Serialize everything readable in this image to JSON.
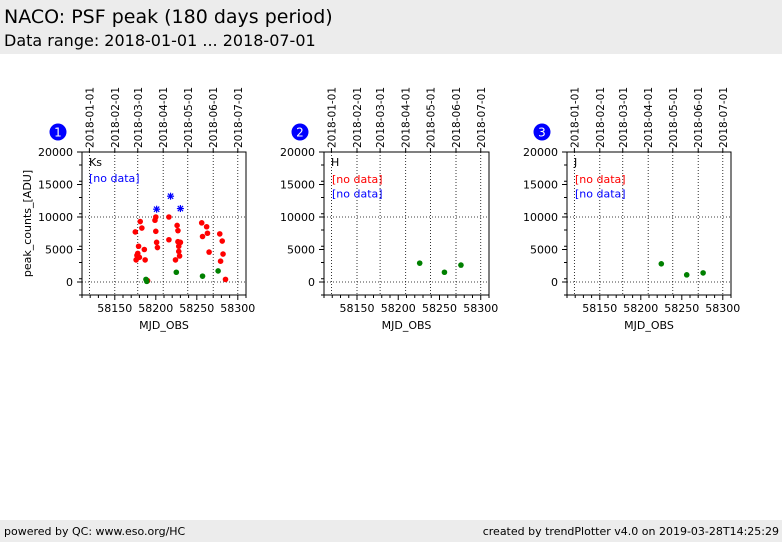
{
  "header": {
    "title": "NACO: PSF peak (180 days period)",
    "subtitle": "Data range: 2018-01-01 ... 2018-07-01"
  },
  "footer": {
    "left": "powered by QC: www.eso.org/HC",
    "right": "created by trendPlotter v4.0 on 2019-03-28T14:25:29"
  },
  "colors": {
    "red": "#ff0000",
    "green": "#008000",
    "blue": "#0000ff",
    "badge": "#0000ff",
    "header_bg": "#ececec"
  },
  "chart_data": [
    {
      "type": "scatter",
      "panel": "1",
      "filter": "Ks",
      "no_data_label": "[no data]",
      "no_data_color": "blue",
      "xlabel": "MJD_OBS",
      "ylabel": "peak_counts_[ADU]",
      "xlim": [
        58110,
        58310
      ],
      "ylim": [
        -2000,
        20000
      ],
      "xticks": [
        58150,
        58200,
        58250,
        58300
      ],
      "yticks": [
        0,
        5000,
        10000,
        15000,
        20000
      ],
      "reference_lines_y": [
        0,
        10000
      ],
      "date_ticks": [
        {
          "label": "2018-01-01",
          "mjd": 58119
        },
        {
          "label": "2018-02-01",
          "mjd": 58150
        },
        {
          "label": "2018-03-01",
          "mjd": 58178
        },
        {
          "label": "2018-04-01",
          "mjd": 58209
        },
        {
          "label": "2018-05-01",
          "mjd": 58239
        },
        {
          "label": "2018-06-01",
          "mjd": 58270
        },
        {
          "label": "2018-07-01",
          "mjd": 58300
        }
      ],
      "series": [
        {
          "name": "red",
          "color": "red",
          "marker": "dot",
          "points": [
            [
              58175,
              7700
            ],
            [
              58176,
              3400
            ],
            [
              58177,
              4100
            ],
            [
              58178,
              4400
            ],
            [
              58179,
              5500
            ],
            [
              58180,
              3800
            ],
            [
              58181,
              9300
            ],
            [
              58183,
              8300
            ],
            [
              58186,
              5000
            ],
            [
              58187,
              3400
            ],
            [
              58190,
              200
            ],
            [
              58199,
              9500
            ],
            [
              58200,
              10000
            ],
            [
              58200,
              7800
            ],
            [
              58201,
              6100
            ],
            [
              58202,
              5300
            ],
            [
              58216,
              10000
            ],
            [
              58216,
              6500
            ],
            [
              58224,
              3400
            ],
            [
              58226,
              8700
            ],
            [
              58227,
              7900
            ],
            [
              58227,
              6200
            ],
            [
              58228,
              5500
            ],
            [
              58228,
              4700
            ],
            [
              58229,
              4000
            ],
            [
              58230,
              6100
            ],
            [
              58256,
              9100
            ],
            [
              58257,
              7000
            ],
            [
              58262,
              8500
            ],
            [
              58263,
              7500
            ],
            [
              58265,
              4600
            ],
            [
              58278,
              7400
            ],
            [
              58279,
              3200
            ],
            [
              58281,
              6300
            ],
            [
              58282,
              4300
            ],
            [
              58285,
              400
            ]
          ]
        },
        {
          "name": "green",
          "color": "green",
          "marker": "dot",
          "points": [
            [
              58188,
              400
            ],
            [
              58189,
              100
            ],
            [
              58225,
              1500
            ],
            [
              58257,
              900
            ],
            [
              58276,
              1700
            ]
          ]
        },
        {
          "name": "blue",
          "color": "blue",
          "marker": "star",
          "points": [
            [
              58201,
              11200
            ],
            [
              58218,
              13200
            ],
            [
              58230,
              11300
            ]
          ]
        }
      ]
    },
    {
      "type": "scatter",
      "panel": "2",
      "filter": "H",
      "no_data_labels": [
        {
          "text": "[no data]",
          "color": "red"
        },
        {
          "text": "[no data]",
          "color": "blue"
        }
      ],
      "xlabel": "MJD_OBS",
      "ylabel": "",
      "xlim": [
        58110,
        58310
      ],
      "ylim": [
        -2000,
        20000
      ],
      "xticks": [
        58150,
        58200,
        58250,
        58300
      ],
      "yticks": [
        0,
        5000,
        10000,
        15000,
        20000
      ],
      "reference_lines_y": [
        0,
        10000
      ],
      "date_ticks": [
        {
          "label": "2018-01-01",
          "mjd": 58119
        },
        {
          "label": "2018-02-01",
          "mjd": 58150
        },
        {
          "label": "2018-03-01",
          "mjd": 58178
        },
        {
          "label": "2018-04-01",
          "mjd": 58209
        },
        {
          "label": "2018-05-01",
          "mjd": 58239
        },
        {
          "label": "2018-06-01",
          "mjd": 58270
        },
        {
          "label": "2018-07-01",
          "mjd": 58300
        }
      ],
      "series": [
        {
          "name": "green",
          "color": "green",
          "marker": "dot",
          "points": [
            [
              58226,
              2900
            ],
            [
              58256,
              1500
            ],
            [
              58276,
              2600
            ]
          ]
        }
      ]
    },
    {
      "type": "scatter",
      "panel": "3",
      "filter": "J",
      "no_data_labels": [
        {
          "text": "[no data]",
          "color": "red"
        },
        {
          "text": "[no data]",
          "color": "blue"
        }
      ],
      "xlabel": "MJD_OBS",
      "ylabel": "",
      "xlim": [
        58110,
        58310
      ],
      "ylim": [
        -2000,
        20000
      ],
      "xticks": [
        58150,
        58200,
        58250,
        58300
      ],
      "yticks": [
        0,
        5000,
        10000,
        15000,
        20000
      ],
      "reference_lines_y": [
        0,
        10000
      ],
      "date_ticks": [
        {
          "label": "2018-01-01",
          "mjd": 58119
        },
        {
          "label": "2018-02-01",
          "mjd": 58150
        },
        {
          "label": "2018-03-01",
          "mjd": 58178
        },
        {
          "label": "2018-04-01",
          "mjd": 58209
        },
        {
          "label": "2018-05-01",
          "mjd": 58239
        },
        {
          "label": "2018-06-01",
          "mjd": 58270
        },
        {
          "label": "2018-07-01",
          "mjd": 58300
        }
      ],
      "series": [
        {
          "name": "green",
          "color": "green",
          "marker": "dot",
          "points": [
            [
              58225,
              2800
            ],
            [
              58256,
              1100
            ],
            [
              58276,
              1400
            ]
          ]
        }
      ]
    }
  ]
}
